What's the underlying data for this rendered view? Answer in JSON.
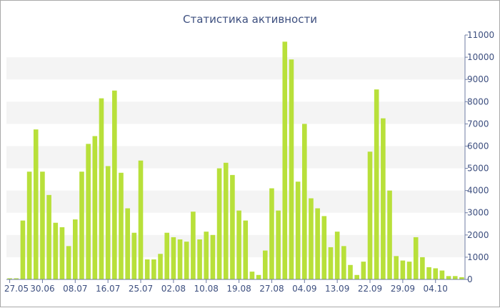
{
  "chart_data": {
    "type": "bar",
    "title": "Статистика активности",
    "xlabel": "",
    "ylabel": "",
    "ylim": [
      0,
      11000
    ],
    "y_axis_side": "right",
    "y_ticks": [
      0,
      1000,
      2000,
      3000,
      4000,
      5000,
      6000,
      7000,
      8000,
      9000,
      10000,
      11000
    ],
    "y_tick_labels": [
      "0",
      "1000",
      "2000",
      "3000",
      "4000",
      "5000",
      "6000",
      "7000",
      "8000",
      "9000",
      "10000",
      "11000"
    ],
    "grid": "alternating horizontal bands",
    "x_tick_labels": [
      {
        "label": "27.05",
        "index": 0
      },
      {
        "label": "30.06",
        "index": 5
      },
      {
        "label": "08.07",
        "index": 10
      },
      {
        "label": "16.07",
        "index": 15
      },
      {
        "label": "25.07",
        "index": 20
      },
      {
        "label": "02.08",
        "index": 25
      },
      {
        "label": "10.08",
        "index": 30
      },
      {
        "label": "19.08",
        "index": 35
      },
      {
        "label": "27.08",
        "index": 40
      },
      {
        "label": "04.09",
        "index": 45
      },
      {
        "label": "13.09",
        "index": 50
      },
      {
        "label": "22.09",
        "index": 55
      },
      {
        "label": "29.09",
        "index": 60
      },
      {
        "label": "04.10",
        "index": 65
      }
    ],
    "values": [
      50,
      50,
      2650,
      4850,
      6750,
      4850,
      3800,
      2550,
      2350,
      1500,
      2700,
      4850,
      6100,
      6450,
      8150,
      5100,
      8500,
      4800,
      3200,
      2100,
      5350,
      900,
      900,
      1150,
      2100,
      1900,
      1800,
      1700,
      3050,
      1800,
      2150,
      2000,
      5000,
      5250,
      4700,
      3100,
      2650,
      350,
      200,
      1300,
      4100,
      3100,
      10700,
      9900,
      4400,
      7000,
      3650,
      3200,
      2850,
      1450,
      2150,
      1500,
      650,
      200,
      800,
      5750,
      8550,
      7250,
      4000,
      1050,
      850,
      800,
      1900,
      1000,
      550,
      500,
      400,
      150,
      150,
      100
    ],
    "bar_color": "#b8e03a"
  }
}
